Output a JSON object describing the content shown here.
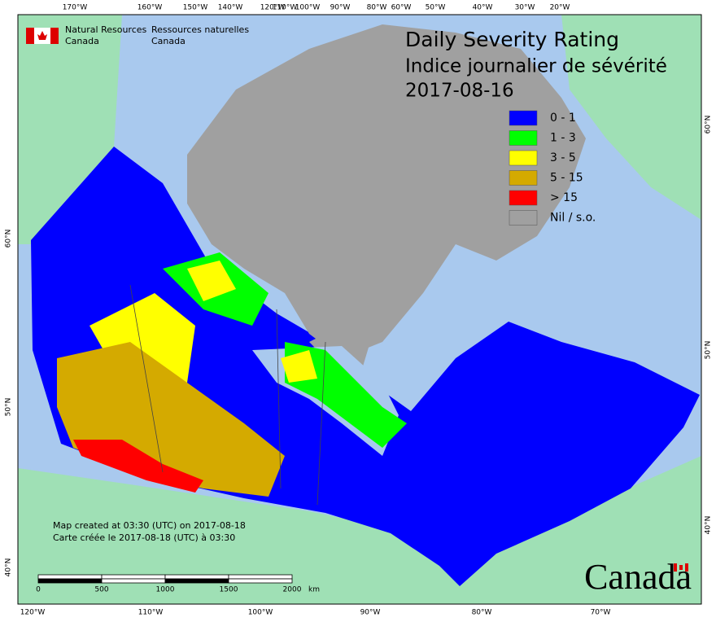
{
  "header": {
    "org_en_1": "Natural Resources",
    "org_en_2": "Canada",
    "org_fr_1": "Ressources naturelles",
    "org_fr_2": "Canada"
  },
  "title": {
    "line1": "Daily Severity Rating",
    "line2": "Indice journalier de sévérité",
    "date": "2017-08-16"
  },
  "legend": [
    {
      "label": "0 - 1",
      "color": "#0000ff"
    },
    {
      "label": "1 - 3",
      "color": "#00ff00"
    },
    {
      "label": "3 - 5",
      "color": "#ffff00"
    },
    {
      "label": "5 - 15",
      "color": "#d4aa00"
    },
    {
      "label": "> 15",
      "color": "#ff0000"
    },
    {
      "label": "Nil / s.o.",
      "color": "#a0a0a0"
    }
  ],
  "graticule": {
    "top": [
      "170°W",
      "160°W",
      "150°W",
      "140°W",
      "120°W",
      "110°W",
      "100°W",
      "90°W",
      "80°W",
      "60°W",
      "50°W",
      "40°W",
      "30°W",
      "20°W"
    ],
    "bottom": [
      "120°W",
      "110°W",
      "100°W",
      "90°W",
      "80°W",
      "70°W"
    ],
    "left": [
      "60°N",
      "50°N",
      "40°N"
    ],
    "right": [
      "60°N",
      "50°N",
      "40°N"
    ]
  },
  "notes": {
    "created_en": "Map created at 03:30 (UTC) on 2017-08-18",
    "created_fr": "Carte créée le 2017-08-18 (UTC) à 03:30"
  },
  "scale": {
    "labels": [
      "0",
      "500",
      "1000",
      "1500",
      "2000"
    ],
    "unit": "km"
  },
  "wordmark": "Canada"
}
